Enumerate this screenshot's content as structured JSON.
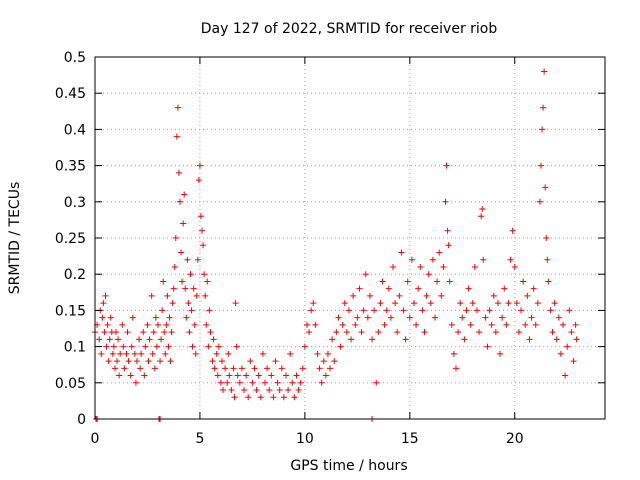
{
  "chart_data": {
    "type": "scatter",
    "title": "Day 127 of 2022, SRMTID for receiver riob",
    "xlabel": "GPS time / hours",
    "ylabel": "SRMTID / TECUs",
    "xlim": [
      0,
      24.3
    ],
    "ylim": [
      0,
      0.5
    ],
    "x_ticks": [
      0,
      5,
      10,
      15,
      20
    ],
    "x_tick_labels": [
      "0",
      "5",
      "10",
      "15",
      "20"
    ],
    "y_ticks": [
      0,
      0.05,
      0.1,
      0.15,
      0.2,
      0.25,
      0.3,
      0.35,
      0.4,
      0.45,
      0.5
    ],
    "y_tick_labels": [
      "0",
      "0.05",
      "0.1",
      "0.15",
      "0.2",
      "0.25",
      "0.3",
      "0.35",
      "0.4",
      "0.45",
      "0.5"
    ],
    "grid": true,
    "marker": "+",
    "color": "#ff0000",
    "series": [
      {
        "name": "SRMTID",
        "points": [
          [
            0.05,
            0.0
          ],
          [
            0.1,
            0.0
          ],
          [
            3.05,
            0.0
          ],
          [
            3.1,
            0.0
          ],
          [
            13.2,
            0.0
          ],
          [
            0.0,
            0.12
          ],
          [
            0.1,
            0.13
          ],
          [
            0.2,
            0.11
          ],
          [
            0.25,
            0.15
          ],
          [
            0.3,
            0.09
          ],
          [
            0.35,
            0.14
          ],
          [
            0.4,
            0.16
          ],
          [
            0.45,
            0.12
          ],
          [
            0.5,
            0.17
          ],
          [
            0.55,
            0.1
          ],
          [
            0.6,
            0.13
          ],
          [
            0.65,
            0.08
          ],
          [
            0.7,
            0.11
          ],
          [
            0.75,
            0.14
          ],
          [
            0.8,
            0.12
          ],
          [
            0.85,
            0.09
          ],
          [
            0.9,
            0.1
          ],
          [
            0.95,
            0.07
          ],
          [
            1.0,
            0.12
          ],
          [
            1.05,
            0.08
          ],
          [
            1.1,
            0.11
          ],
          [
            1.15,
            0.06
          ],
          [
            1.2,
            0.09
          ],
          [
            1.3,
            0.13
          ],
          [
            1.35,
            0.1
          ],
          [
            1.4,
            0.07
          ],
          [
            1.5,
            0.09
          ],
          [
            1.55,
            0.12
          ],
          [
            1.6,
            0.08
          ],
          [
            1.7,
            0.06
          ],
          [
            1.75,
            0.1
          ],
          [
            1.8,
            0.14
          ],
          [
            1.9,
            0.09
          ],
          [
            1.95,
            0.05
          ],
          [
            2.0,
            0.08
          ],
          [
            2.1,
            0.11
          ],
          [
            2.15,
            0.07
          ],
          [
            2.2,
            0.09
          ],
          [
            2.3,
            0.12
          ],
          [
            2.35,
            0.06
          ],
          [
            2.4,
            0.1
          ],
          [
            2.5,
            0.13
          ],
          [
            2.55,
            0.08
          ],
          [
            2.6,
            0.11
          ],
          [
            2.7,
            0.17
          ],
          [
            2.75,
            0.09
          ],
          [
            2.8,
            0.12
          ],
          [
            2.85,
            0.07
          ],
          [
            2.9,
            0.14
          ],
          [
            2.95,
            0.1
          ],
          [
            3.0,
            0.13
          ],
          [
            3.1,
            0.08
          ],
          [
            3.15,
            0.11
          ],
          [
            3.2,
            0.15
          ],
          [
            3.25,
            0.19
          ],
          [
            3.3,
            0.12
          ],
          [
            3.35,
            0.09
          ],
          [
            3.4,
            0.13
          ],
          [
            3.45,
            0.17
          ],
          [
            3.5,
            0.1
          ],
          [
            3.55,
            0.14
          ],
          [
            3.6,
            0.08
          ],
          [
            3.65,
            0.12
          ],
          [
            3.7,
            0.16
          ],
          [
            3.75,
            0.18
          ],
          [
            3.8,
            0.21
          ],
          [
            3.85,
            0.25
          ],
          [
            3.9,
            0.39
          ],
          [
            3.95,
            0.43
          ],
          [
            4.0,
            0.34
          ],
          [
            4.05,
            0.3
          ],
          [
            4.1,
            0.23
          ],
          [
            4.15,
            0.19
          ],
          [
            4.2,
            0.27
          ],
          [
            4.25,
            0.31
          ],
          [
            4.3,
            0.18
          ],
          [
            4.35,
            0.14
          ],
          [
            4.4,
            0.22
          ],
          [
            4.45,
            0.16
          ],
          [
            4.5,
            0.12
          ],
          [
            4.55,
            0.2
          ],
          [
            4.6,
            0.15
          ],
          [
            4.65,
            0.1
          ],
          [
            4.7,
            0.18
          ],
          [
            4.75,
            0.13
          ],
          [
            4.8,
            0.09
          ],
          [
            4.85,
            0.17
          ],
          [
            4.9,
            0.22
          ],
          [
            4.95,
            0.33
          ],
          [
            5.0,
            0.35
          ],
          [
            5.05,
            0.28
          ],
          [
            5.1,
            0.26
          ],
          [
            5.15,
            0.24
          ],
          [
            5.2,
            0.2
          ],
          [
            5.25,
            0.17
          ],
          [
            5.3,
            0.13
          ],
          [
            5.35,
            0.19
          ],
          [
            5.4,
            0.1
          ],
          [
            5.45,
            0.15
          ],
          [
            5.5,
            0.12
          ],
          [
            5.6,
            0.08
          ],
          [
            5.65,
            0.11
          ],
          [
            5.7,
            0.07
          ],
          [
            5.8,
            0.09
          ],
          [
            5.85,
            0.06
          ],
          [
            5.9,
            0.1
          ],
          [
            6.0,
            0.05
          ],
          [
            6.05,
            0.08
          ],
          [
            6.1,
            0.04
          ],
          [
            6.2,
            0.07
          ],
          [
            6.3,
            0.05
          ],
          [
            6.35,
            0.09
          ],
          [
            6.4,
            0.06
          ],
          [
            6.5,
            0.04
          ],
          [
            6.6,
            0.07
          ],
          [
            6.65,
            0.03
          ],
          [
            6.7,
            0.16
          ],
          [
            6.75,
            0.1
          ],
          [
            6.8,
            0.06
          ],
          [
            6.9,
            0.05
          ],
          [
            7.0,
            0.07
          ],
          [
            7.1,
            0.04
          ],
          [
            7.2,
            0.06
          ],
          [
            7.3,
            0.03
          ],
          [
            7.4,
            0.08
          ],
          [
            7.5,
            0.05
          ],
          [
            7.6,
            0.07
          ],
          [
            7.7,
            0.04
          ],
          [
            7.8,
            0.06
          ],
          [
            7.9,
            0.03
          ],
          [
            8.0,
            0.09
          ],
          [
            8.1,
            0.05
          ],
          [
            8.2,
            0.07
          ],
          [
            8.3,
            0.04
          ],
          [
            8.4,
            0.06
          ],
          [
            8.5,
            0.03
          ],
          [
            8.6,
            0.08
          ],
          [
            8.7,
            0.05
          ],
          [
            8.8,
            0.04
          ],
          [
            8.9,
            0.07
          ],
          [
            9.0,
            0.03
          ],
          [
            9.1,
            0.06
          ],
          [
            9.2,
            0.04
          ],
          [
            9.3,
            0.09
          ],
          [
            9.4,
            0.05
          ],
          [
            9.5,
            0.03
          ],
          [
            9.6,
            0.06
          ],
          [
            9.7,
            0.04
          ],
          [
            9.8,
            0.05
          ],
          [
            9.9,
            0.07
          ],
          [
            10.0,
            0.1
          ],
          [
            10.1,
            0.13
          ],
          [
            10.2,
            0.12
          ],
          [
            10.3,
            0.15
          ],
          [
            10.4,
            0.16
          ],
          [
            10.5,
            0.13
          ],
          [
            10.6,
            0.09
          ],
          [
            10.7,
            0.07
          ],
          [
            10.8,
            0.05
          ],
          [
            10.9,
            0.08
          ],
          [
            11.0,
            0.06
          ],
          [
            11.1,
            0.09
          ],
          [
            11.2,
            0.07
          ],
          [
            11.3,
            0.11
          ],
          [
            11.4,
            0.08
          ],
          [
            11.5,
            0.12
          ],
          [
            11.6,
            0.14
          ],
          [
            11.7,
            0.1
          ],
          [
            11.8,
            0.13
          ],
          [
            11.9,
            0.16
          ],
          [
            12.0,
            0.12
          ],
          [
            12.1,
            0.15
          ],
          [
            12.2,
            0.11
          ],
          [
            12.3,
            0.17
          ],
          [
            12.4,
            0.13
          ],
          [
            12.5,
            0.14
          ],
          [
            12.6,
            0.18
          ],
          [
            12.7,
            0.12
          ],
          [
            12.8,
            0.15
          ],
          [
            12.9,
            0.2
          ],
          [
            13.0,
            0.14
          ],
          [
            13.1,
            0.17
          ],
          [
            13.2,
            0.11
          ],
          [
            13.3,
            0.15
          ],
          [
            13.4,
            0.05
          ],
          [
            13.5,
            0.12
          ],
          [
            13.6,
            0.16
          ],
          [
            13.7,
            0.19
          ],
          [
            13.8,
            0.13
          ],
          [
            13.9,
            0.15
          ],
          [
            14.0,
            0.18
          ],
          [
            14.1,
            0.14
          ],
          [
            14.2,
            0.21
          ],
          [
            14.3,
            0.16
          ],
          [
            14.4,
            0.12
          ],
          [
            14.5,
            0.17
          ],
          [
            14.6,
            0.23
          ],
          [
            14.7,
            0.15
          ],
          [
            14.8,
            0.11
          ],
          [
            14.9,
            0.19
          ],
          [
            15.0,
            0.14
          ],
          [
            15.1,
            0.22
          ],
          [
            15.2,
            0.16
          ],
          [
            15.3,
            0.13
          ],
          [
            15.4,
            0.18
          ],
          [
            15.5,
            0.21
          ],
          [
            15.6,
            0.15
          ],
          [
            15.7,
            0.12
          ],
          [
            15.8,
            0.17
          ],
          [
            15.9,
            0.2
          ],
          [
            16.0,
            0.16
          ],
          [
            16.1,
            0.22
          ],
          [
            16.2,
            0.14
          ],
          [
            16.3,
            0.19
          ],
          [
            16.4,
            0.23
          ],
          [
            16.5,
            0.17
          ],
          [
            16.6,
            0.21
          ],
          [
            16.7,
            0.3
          ],
          [
            16.75,
            0.35
          ],
          [
            16.8,
            0.26
          ],
          [
            16.85,
            0.24
          ],
          [
            16.9,
            0.19
          ],
          [
            17.0,
            0.13
          ],
          [
            17.1,
            0.09
          ],
          [
            17.2,
            0.07
          ],
          [
            17.3,
            0.12
          ],
          [
            17.4,
            0.16
          ],
          [
            17.5,
            0.14
          ],
          [
            17.6,
            0.11
          ],
          [
            17.7,
            0.15
          ],
          [
            17.8,
            0.18
          ],
          [
            17.9,
            0.13
          ],
          [
            18.0,
            0.16
          ],
          [
            18.1,
            0.21
          ],
          [
            18.2,
            0.15
          ],
          [
            18.3,
            0.12
          ],
          [
            18.4,
            0.28
          ],
          [
            18.45,
            0.29
          ],
          [
            18.5,
            0.22
          ],
          [
            18.6,
            0.14
          ],
          [
            18.7,
            0.1
          ],
          [
            18.8,
            0.15
          ],
          [
            18.9,
            0.13
          ],
          [
            19.0,
            0.17
          ],
          [
            19.1,
            0.12
          ],
          [
            19.2,
            0.16
          ],
          [
            19.3,
            0.09
          ],
          [
            19.4,
            0.14
          ],
          [
            19.5,
            0.18
          ],
          [
            19.6,
            0.13
          ],
          [
            19.7,
            0.16
          ],
          [
            19.8,
            0.22
          ],
          [
            19.9,
            0.26
          ],
          [
            20.0,
            0.21
          ],
          [
            20.1,
            0.16
          ],
          [
            20.2,
            0.12
          ],
          [
            20.3,
            0.15
          ],
          [
            20.4,
            0.19
          ],
          [
            20.5,
            0.13
          ],
          [
            20.6,
            0.17
          ],
          [
            20.7,
            0.11
          ],
          [
            20.8,
            0.14
          ],
          [
            20.9,
            0.18
          ],
          [
            21.0,
            0.13
          ],
          [
            21.1,
            0.16
          ],
          [
            21.2,
            0.3
          ],
          [
            21.25,
            0.35
          ],
          [
            21.3,
            0.4
          ],
          [
            21.35,
            0.43
          ],
          [
            21.4,
            0.48
          ],
          [
            21.45,
            0.32
          ],
          [
            21.5,
            0.25
          ],
          [
            21.55,
            0.22
          ],
          [
            21.6,
            0.19
          ],
          [
            21.7,
            0.15
          ],
          [
            21.8,
            0.12
          ],
          [
            21.9,
            0.16
          ],
          [
            22.0,
            0.11
          ],
          [
            22.1,
            0.14
          ],
          [
            22.2,
            0.09
          ],
          [
            22.3,
            0.13
          ],
          [
            22.4,
            0.06
          ],
          [
            22.5,
            0.1
          ],
          [
            22.6,
            0.15
          ],
          [
            22.7,
            0.12
          ],
          [
            22.8,
            0.08
          ],
          [
            22.9,
            0.13
          ],
          [
            22.95,
            0.11
          ]
        ]
      }
    ]
  }
}
